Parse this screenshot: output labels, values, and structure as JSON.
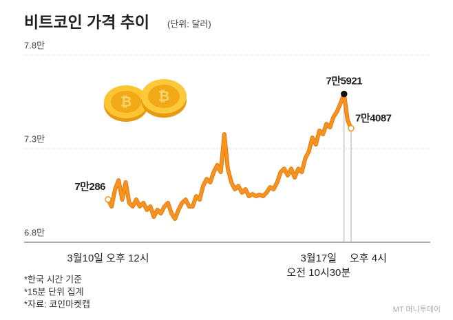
{
  "chart_data": {
    "type": "line",
    "title": "비트코인 가격 추이",
    "subtitle": "(단위: 달러)",
    "categories": [
      "3월10일 오후 12시",
      null,
      null,
      null,
      null,
      null,
      null,
      null,
      null,
      null,
      null,
      null,
      null,
      null,
      null,
      null,
      null,
      null,
      null,
      null,
      null,
      null,
      null,
      null,
      null,
      null,
      null,
      null,
      null,
      null,
      null,
      null,
      null,
      null,
      null,
      null,
      null,
      null,
      null,
      null,
      null,
      null,
      null,
      null,
      null,
      null,
      null,
      null,
      null,
      null,
      null,
      null,
      null,
      null,
      null,
      null,
      null,
      null,
      null,
      null,
      null,
      null,
      null,
      null,
      null,
      null,
      null,
      "3월17일\n오전 10시30분",
      null,
      "오후 4시"
    ],
    "values": [
      70286,
      69910,
      70830,
      71310,
      70280,
      71200,
      70100,
      69910,
      70280,
      69910,
      70100,
      69730,
      69910,
      69360,
      69730,
      69540,
      69910,
      70100,
      69540,
      69250,
      69730,
      70100,
      70280,
      69910,
      69910,
      70460,
      70280,
      71010,
      71380,
      71200,
      71750,
      72120,
      71750,
      73770,
      71930,
      71200,
      70830,
      71010,
      70650,
      70830,
      70460,
      70570,
      70460,
      70540,
      70460,
      70650,
      70940,
      70830,
      71200,
      71750,
      71930,
      71570,
      71930,
      71460,
      71930,
      71750,
      72490,
      72850,
      73590,
      73220,
      73960,
      73770,
      74320,
      74140,
      74690,
      74980,
      75430,
      75921,
      74510,
      74087
    ],
    "value_labels": [
      "7만286",
      null,
      null,
      null,
      null,
      null,
      null,
      null,
      null,
      null,
      null,
      null,
      null,
      null,
      null,
      null,
      null,
      null,
      null,
      null,
      null,
      null,
      null,
      null,
      null,
      null,
      null,
      null,
      null,
      null,
      null,
      null,
      null,
      null,
      null,
      null,
      null,
      null,
      null,
      null,
      null,
      null,
      null,
      null,
      null,
      null,
      null,
      null,
      null,
      null,
      null,
      null,
      null,
      null,
      null,
      null,
      null,
      null,
      null,
      null,
      null,
      null,
      null,
      null,
      null,
      null,
      null,
      "7만5921",
      null,
      "7만4087"
    ],
    "color": "#f7931e",
    "ylim": [
      68000,
      78000
    ],
    "yticks": [
      {
        "value": 68000,
        "label": "6.8만"
      },
      {
        "value": 73000,
        "label": "7.3만"
      },
      {
        "value": 78000,
        "label": "7.8만"
      }
    ],
    "grid": true,
    "notes": [
      "*한국 시간 기준",
      "*15분 단위 집계",
      "*자료: 코인마켓캡"
    ],
    "watermark": "MT 머니투데이"
  }
}
